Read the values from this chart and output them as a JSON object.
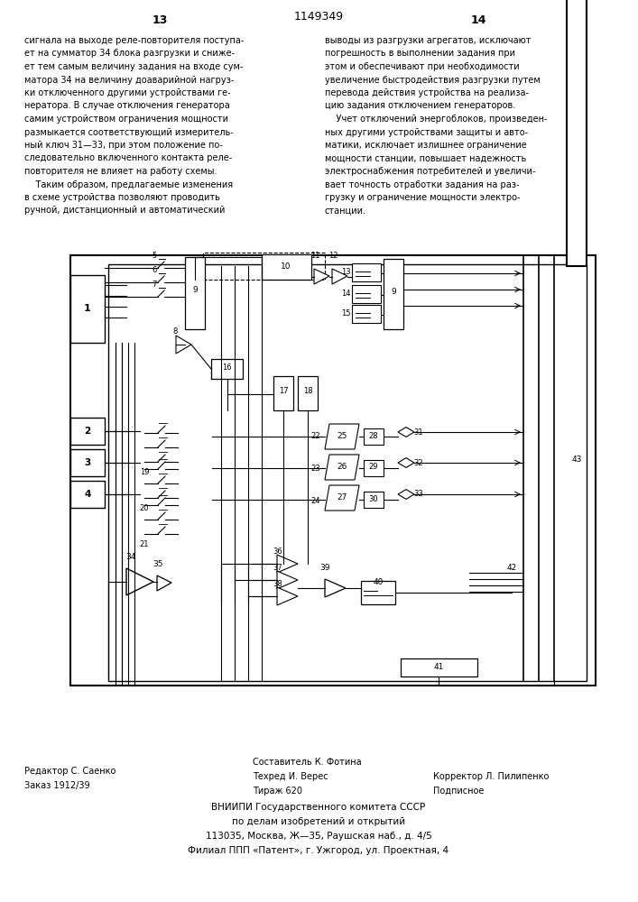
{
  "page_number_left": "13",
  "page_number_right": "14",
  "patent_number": "1149349",
  "text_left": "сигнала на выходе реле-повторителя поступа-\nет на сумматор 34 блока разгрузки и сниже-\nет тем самым величину задания на входе сум-\nматора 34 на величину доаварийной нагруз-\nки отключенного другими устройствами ге-\nнератора. В случае отключения генератора\nсамим устройством ограничения мощности\nразмыкается соответствующий измеритель-\nный ключ 31—33, при этом положение по-\nследовательно включенного контакта реле-\nповторителя не влияет на работу схемы.\n    Таким образом, предлагаемые изменения\nв схеме устройства позволяют проводить\nручной, дистанционный и автоматический",
  "text_right": "выводы из разгрузки агрегатов, исключают\nпогрешность в выполнении задания при\nэтом и обеспечивают при необходимости\nувеличение быстродействия разгрузки путем\nперевода действия устройства на реализа-\nцию задания отключением генераторов.\n    Учет отключений энергоблоков, произведен-\nных другими устройствами защиты и авто-\nматики, исключает излишнее ограничение\nмощности станции, повышает надежность\nэлектроснабжения потребителей и увеличи-\nвает точность отработки задания на раз-\nгрузку и ограничение мощности электро-\nстанции.",
  "footer_left1": "Редактор С. Саенко",
  "footer_left2": "Заказ 1912/39",
  "footer_center1": "Составитель К. Фотина",
  "footer_center2": "Техред И. Верес",
  "footer_center3": "Тираж 620",
  "footer_right1": "Корректор Л. Пилипенко",
  "footer_right2": "Подписное",
  "footer_vniipи1": "ВНИИПИ Государственного комитета СССР",
  "footer_vniipи2": "по делам изобретений и открытий",
  "footer_vniipи3": "113035, Москва, Ж—35, Раушская наб., д. 4/5",
  "footer_vniipи4": "Филиал ППП «Патент», г. Ужгород, ул. Проектная, 4",
  "bg_color": "#ffffff"
}
